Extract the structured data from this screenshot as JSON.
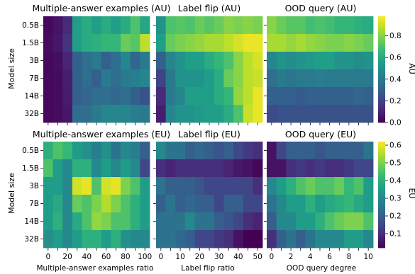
{
  "chart_data": [
    {
      "type": "heatmap",
      "title": "Multiple-answer examples (AU)",
      "ylabel": "Model size",
      "xlabel": "",
      "x_ticks": [
        "0",
        "20",
        "40",
        "60",
        "80",
        "100"
      ],
      "y_categories": [
        "0.5B",
        "1.5B",
        "3B",
        "7B",
        "14B",
        "32B"
      ],
      "colorbar": "AU",
      "z": [
        [
          0.02,
          0.05,
          0.12,
          0.55,
          0.6,
          0.55,
          0.6,
          0.55,
          0.6,
          0.7,
          0.58
        ],
        [
          0.03,
          0.06,
          0.15,
          0.55,
          0.6,
          0.62,
          0.65,
          0.65,
          0.75,
          0.72,
          0.88
        ],
        [
          0.02,
          0.04,
          0.1,
          0.3,
          0.35,
          0.4,
          0.3,
          0.35,
          0.45,
          0.32,
          0.4
        ],
        [
          0.02,
          0.03,
          0.08,
          0.3,
          0.35,
          0.3,
          0.4,
          0.35,
          0.4,
          0.42,
          0.45
        ],
        [
          0.02,
          0.03,
          0.07,
          0.3,
          0.32,
          0.35,
          0.35,
          0.33,
          0.35,
          0.3,
          0.25
        ],
        [
          0.02,
          0.03,
          0.06,
          0.35,
          0.35,
          0.4,
          0.45,
          0.45,
          0.45,
          0.42,
          0.4
        ]
      ]
    },
    {
      "type": "heatmap",
      "title": "Label flip (AU)",
      "xlabel": "",
      "x_ticks": [
        "0",
        "10",
        "20",
        "30",
        "40",
        "50"
      ],
      "y_categories": [
        "0.5B",
        "1.5B",
        "3B",
        "7B",
        "14B",
        "32B"
      ],
      "z": [
        [
          0.5,
          0.7,
          0.72,
          0.7,
          0.75,
          0.72,
          0.75,
          0.8,
          0.78,
          0.8,
          0.78
        ],
        [
          0.55,
          0.75,
          0.78,
          0.8,
          0.82,
          0.85,
          0.85,
          0.88,
          0.92,
          0.95,
          0.95
        ],
        [
          0.3,
          0.45,
          0.5,
          0.55,
          0.55,
          0.6,
          0.65,
          0.7,
          0.8,
          0.88,
          0.92
        ],
        [
          0.2,
          0.4,
          0.5,
          0.5,
          0.5,
          0.55,
          0.6,
          0.75,
          0.8,
          0.88,
          0.9
        ],
        [
          0.12,
          0.4,
          0.45,
          0.55,
          0.55,
          0.55,
          0.6,
          0.65,
          0.82,
          0.88,
          0.95
        ],
        [
          0.08,
          0.45,
          0.5,
          0.5,
          0.52,
          0.55,
          0.55,
          0.6,
          0.7,
          0.9,
          0.95
        ]
      ]
    },
    {
      "type": "heatmap",
      "title": "OOD query (AU)",
      "xlabel": "",
      "x_ticks": [
        "0",
        "2",
        "4",
        "6",
        "8",
        "10"
      ],
      "y_categories": [
        "0.5B",
        "1.5B",
        "3B",
        "7B",
        "14B",
        "32B"
      ],
      "z": [
        [
          0.8,
          0.75,
          0.72,
          0.72,
          0.68,
          0.7,
          0.68,
          0.65,
          0.65,
          0.62,
          0.6
        ],
        [
          0.85,
          0.85,
          0.82,
          0.85,
          0.82,
          0.8,
          0.78,
          0.78,
          0.8,
          0.78,
          0.75
        ],
        [
          0.45,
          0.5,
          0.48,
          0.5,
          0.52,
          0.55,
          0.55,
          0.5,
          0.5,
          0.48,
          0.5
        ],
        [
          0.35,
          0.4,
          0.38,
          0.4,
          0.4,
          0.42,
          0.4,
          0.4,
          0.4,
          0.4,
          0.4
        ],
        [
          0.3,
          0.3,
          0.3,
          0.28,
          0.3,
          0.3,
          0.3,
          0.3,
          0.3,
          0.32,
          0.3
        ],
        [
          0.22,
          0.25,
          0.25,
          0.25,
          0.25,
          0.25,
          0.25,
          0.25,
          0.25,
          0.25,
          0.25
        ]
      ]
    },
    {
      "type": "heatmap",
      "title": "Multiple-answer examples (EU)",
      "ylabel": "Model size",
      "xlabel": "Multiple-answer examples ratio",
      "x_ticks": [
        "0",
        "20",
        "40",
        "60",
        "80",
        "100"
      ],
      "y_categories": [
        "0.5B",
        "1.5B",
        "3B",
        "7B",
        "14B",
        "32B"
      ],
      "colorbar": "EU",
      "z": [
        [
          0.4,
          0.45,
          0.42,
          0.35,
          0.32,
          0.28,
          0.32,
          0.25,
          0.3,
          0.28,
          0.2
        ],
        [
          0.45,
          0.35,
          0.3,
          0.4,
          0.4,
          0.3,
          0.35,
          0.3,
          0.35,
          0.3,
          0.15
        ],
        [
          0.35,
          0.35,
          0.3,
          0.58,
          0.6,
          0.45,
          0.58,
          0.6,
          0.5,
          0.45,
          0.35
        ],
        [
          0.35,
          0.38,
          0.3,
          0.48,
          0.45,
          0.5,
          0.55,
          0.5,
          0.45,
          0.4,
          0.35
        ],
        [
          0.35,
          0.4,
          0.3,
          0.38,
          0.45,
          0.52,
          0.5,
          0.45,
          0.45,
          0.4,
          0.35
        ],
        [
          0.32,
          0.35,
          0.3,
          0.35,
          0.4,
          0.4,
          0.35,
          0.4,
          0.32,
          0.3,
          0.3
        ]
      ]
    },
    {
      "type": "heatmap",
      "title": "Label flip (EU)",
      "xlabel": "Label flip ratio",
      "x_ticks": [
        "0",
        "10",
        "20",
        "30",
        "40",
        "50"
      ],
      "y_categories": [
        "0.5B",
        "1.5B",
        "3B",
        "7B",
        "14B",
        "32B"
      ],
      "z": [
        [
          0.3,
          0.25,
          0.25,
          0.2,
          0.22,
          0.2,
          0.18,
          0.2,
          0.15,
          0.12,
          0.1
        ],
        [
          0.1,
          0.08,
          0.1,
          0.1,
          0.1,
          0.1,
          0.1,
          0.08,
          0.06,
          0.05,
          0.03
        ],
        [
          0.25,
          0.2,
          0.2,
          0.2,
          0.18,
          0.15,
          0.15,
          0.15,
          0.15,
          0.15,
          0.1
        ],
        [
          0.2,
          0.25,
          0.2,
          0.22,
          0.2,
          0.2,
          0.15,
          0.2,
          0.2,
          0.15,
          0.15
        ],
        [
          0.25,
          0.25,
          0.25,
          0.3,
          0.25,
          0.25,
          0.2,
          0.18,
          0.15,
          0.1,
          0.08
        ],
        [
          0.25,
          0.25,
          0.22,
          0.2,
          0.15,
          0.15,
          0.12,
          0.1,
          0.05,
          0.02,
          0.02
        ]
      ]
    },
    {
      "type": "heatmap",
      "title": "OOD query (EU)",
      "xlabel": "OOD query degree",
      "x_ticks": [
        "0",
        "2",
        "4",
        "6",
        "8",
        "10"
      ],
      "y_categories": [
        "0.5B",
        "1.5B",
        "3B",
        "7B",
        "14B",
        "32B"
      ],
      "z": [
        [
          0.05,
          0.15,
          0.2,
          0.2,
          0.2,
          0.18,
          0.2,
          0.2,
          0.2,
          0.2,
          0.25
        ],
        [
          0.05,
          0.05,
          0.1,
          0.12,
          0.1,
          0.12,
          0.1,
          0.1,
          0.12,
          0.15,
          0.15
        ],
        [
          0.3,
          0.35,
          0.4,
          0.45,
          0.48,
          0.45,
          0.45,
          0.48,
          0.42,
          0.45,
          0.35
        ],
        [
          0.25,
          0.3,
          0.35,
          0.35,
          0.4,
          0.35,
          0.38,
          0.4,
          0.42,
          0.38,
          0.35
        ],
        [
          0.2,
          0.3,
          0.3,
          0.35,
          0.35,
          0.4,
          0.45,
          0.48,
          0.5,
          0.5,
          0.45
        ],
        [
          0.1,
          0.2,
          0.25,
          0.2,
          0.25,
          0.3,
          0.3,
          0.3,
          0.35,
          0.35,
          0.3
        ]
      ]
    }
  ],
  "colorbars": [
    {
      "label": "AU",
      "ticks": [
        "0.0",
        "0.2",
        "0.4",
        "0.6",
        "0.8"
      ],
      "range": [
        0.0,
        0.98
      ]
    },
    {
      "label": "EU",
      "ticks": [
        "0.1",
        "0.2",
        "0.3",
        "0.4",
        "0.5",
        "0.6"
      ],
      "range": [
        0.02,
        0.62
      ]
    }
  ],
  "colormap": [
    "#440154",
    "#482878",
    "#3e4989",
    "#31688e",
    "#26828e",
    "#1f9e89",
    "#35b779",
    "#6ece58",
    "#b5de2b",
    "#fde725"
  ]
}
